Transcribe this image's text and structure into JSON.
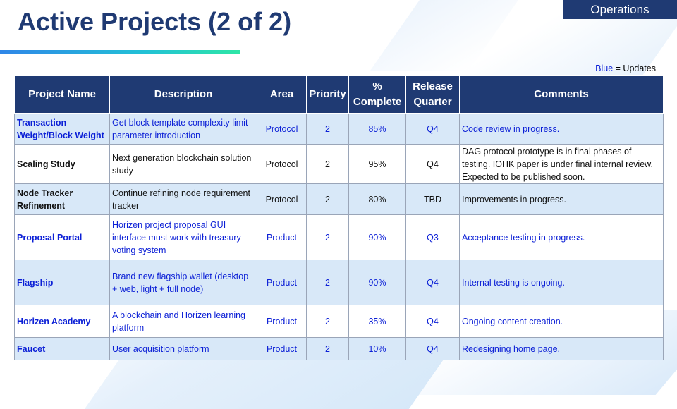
{
  "header": {
    "title": "Active Projects (2 of 2)",
    "section": "Operations"
  },
  "legend": {
    "key": "Blue",
    "text": "= Updates"
  },
  "colors": {
    "header_bg": "#1f3a73",
    "update_text": "#0b1fd6",
    "alt_row_bg": "#d8e8f8"
  },
  "table": {
    "columns": [
      "Project Name",
      "Description",
      "Area",
      "Priority",
      "% Complete",
      "Release Quarter",
      "Comments"
    ],
    "rows": [
      {
        "name": "Transaction Weight/Block Weight",
        "description": "Get block template complexity limit parameter introduction",
        "area": "Protocol",
        "priority": "2",
        "complete": "85%",
        "quarter": "Q4",
        "comments": "Code review in progress.",
        "updated": true
      },
      {
        "name": "Scaling Study",
        "description": "Next generation blockchain solution study",
        "area": "Protocol",
        "priority": "2",
        "complete": "95%",
        "quarter": "Q4",
        "comments": "DAG protocol prototype is in final phases of testing. IOHK paper is under final internal review. Expected to be published soon.",
        "updated": false
      },
      {
        "name": "Node Tracker Refinement",
        "description": "Continue refining node requirement tracker",
        "area": "Protocol",
        "priority": "2",
        "complete": "80%",
        "quarter": "TBD",
        "comments": "Improvements in progress.",
        "updated": false
      },
      {
        "name": "Proposal Portal",
        "description": "Horizen project proposal GUI interface must work with treasury voting system",
        "area": "Product",
        "priority": "2",
        "complete": "90%",
        "quarter": "Q3",
        "comments": "Acceptance testing in progress.",
        "updated": true
      },
      {
        "name": "Flagship",
        "description": "Brand new flagship wallet (desktop + web, light + full node)",
        "area": "Product",
        "priority": "2",
        "complete": "90%",
        "quarter": "Q4",
        "comments": "Internal testing is ongoing.",
        "updated": true
      },
      {
        "name": "Horizen Academy",
        "description": "A blockchain and Horizen learning platform",
        "area": "Product",
        "priority": "2",
        "complete": "35%",
        "quarter": "Q4",
        "comments": "Ongoing content creation.",
        "updated": true
      },
      {
        "name": "Faucet",
        "description": "User acquisition platform",
        "area": "Product",
        "priority": "2",
        "complete": "10%",
        "quarter": "Q4",
        "comments": "Redesigning home page.",
        "updated": true
      }
    ]
  }
}
